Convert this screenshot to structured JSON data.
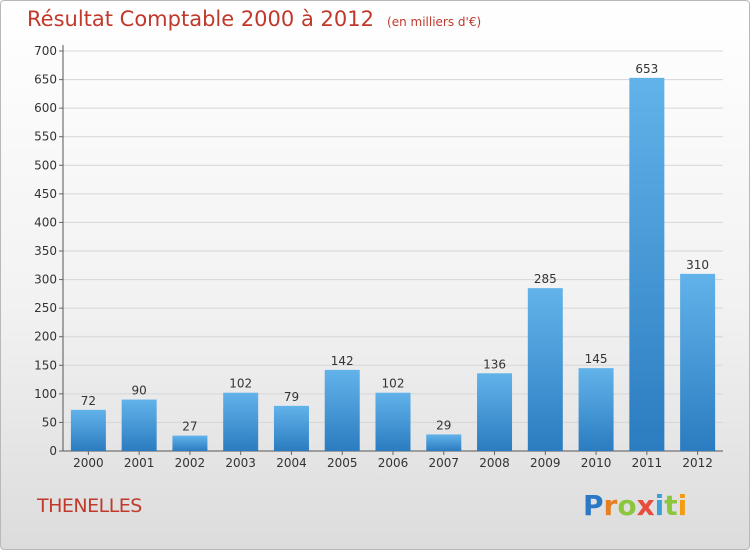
{
  "title": "Résultat Comptable 2000 à 2012",
  "subtitle": "(en milliers d'€)",
  "place": "THENELLES",
  "logo": {
    "letters": [
      "P",
      "r",
      "o",
      "x",
      "i",
      "t",
      "i"
    ],
    "colors": [
      "#2b78c6",
      "#e67e22",
      "#8cc63f",
      "#e74c3c",
      "#3aa0d9",
      "#8cc63f",
      "#f39c12"
    ]
  },
  "colors": {
    "bar_top": "#62b3ea",
    "bar_bottom": "#2b7cc0",
    "title": "#c0392b",
    "grid": "#d6d6d6",
    "axis_text": "#333333"
  },
  "chart_data": {
    "type": "bar",
    "categories": [
      "2000",
      "2001",
      "2002",
      "2003",
      "2004",
      "2005",
      "2006",
      "2007",
      "2008",
      "2009",
      "2010",
      "2011",
      "2012"
    ],
    "values": [
      72,
      90,
      27,
      102,
      79,
      142,
      102,
      29,
      136,
      285,
      145,
      653,
      310
    ],
    "yticks": [
      "0",
      "50",
      "100",
      "150",
      "200",
      "250",
      "300",
      "350",
      "400",
      "450",
      "500",
      "550",
      "600",
      "650",
      "700"
    ],
    "ylim": [
      0,
      700
    ],
    "grid": "horizontal"
  }
}
